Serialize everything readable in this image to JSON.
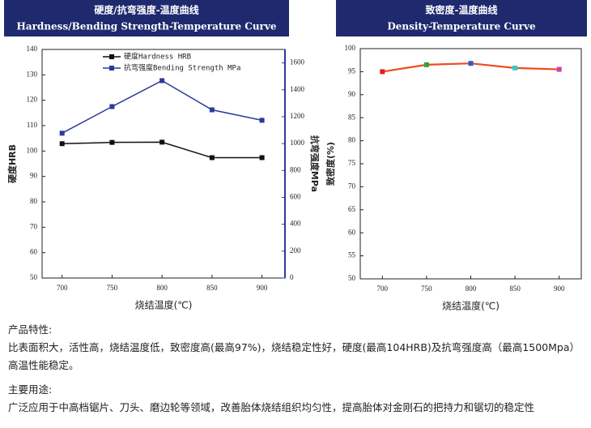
{
  "chart_data": [
    {
      "type": "line",
      "title": "硬度/抗弯强度-温度曲线",
      "subtitle": "Hardness/Bending Strength-Temperature Curve",
      "x": [
        700,
        750,
        800,
        850,
        900
      ],
      "xlim": [
        680,
        923
      ],
      "xticks": [
        700,
        750,
        800,
        850,
        900
      ],
      "ylim": [
        50,
        140
      ],
      "yticks": [
        50,
        60,
        70,
        80,
        90,
        100,
        110,
        120,
        130,
        140
      ],
      "y2lim": [
        0,
        1700
      ],
      "y2ticks": [
        0,
        200,
        400,
        600,
        800,
        1000,
        1200,
        1400,
        1600
      ],
      "x_label": "烧结温度(℃)",
      "y_label": "硬度HRB",
      "y2_label": "抗弯强度MPa",
      "legend": "upper center",
      "series": [
        {
          "name": "硬度Hardness HRB",
          "color": "#111111",
          "values": [
            102.9,
            103.4,
            103.5,
            97.4,
            97.4
          ]
        },
        {
          "name": "抗弯强度Bending Strength MPa",
          "color": "#2b3a9a",
          "axis": "y2",
          "values": [
            1077,
            1275,
            1468,
            1251,
            1173
          ]
        }
      ]
    },
    {
      "type": "line",
      "title": "致密度-温度曲线",
      "subtitle": "Density-Temperature Curve",
      "x": [
        700,
        750,
        800,
        850,
        900
      ],
      "xlim": [
        675,
        925
      ],
      "xticks": [
        700,
        750,
        800,
        850,
        900
      ],
      "ylim": [
        50,
        100
      ],
      "yticks": [
        50,
        55,
        60,
        65,
        70,
        75,
        80,
        85,
        90,
        95,
        100
      ],
      "x_label": "烧结温度(℃)",
      "y_label": "致密度(%)",
      "series": [
        {
          "color": "#f04a20",
          "point_colors": [
            "#e02020",
            "#22aa33",
            "#3355cc",
            "#33cccc",
            "#cc44aa"
          ],
          "values": [
            95.0,
            96.5,
            96.8,
            95.8,
            95.5
          ]
        }
      ]
    }
  ],
  "sections": [
    {
      "heading": "产品特性:",
      "body": "比表面积大，活性高，烧结温度低，致密度高(最高97%)，烧结稳定性好，硬度(最高104HRB)及抗弯强度高（最高1500Mpa）高温性能稳定。"
    },
    {
      "heading": "主要用途:",
      "body": "广泛应用于中高档锯片、刀头、磨边轮等领域，改善胎体烧结组织均匀性，提高胎体对金刚石的把持力和锯切的稳定性"
    }
  ]
}
